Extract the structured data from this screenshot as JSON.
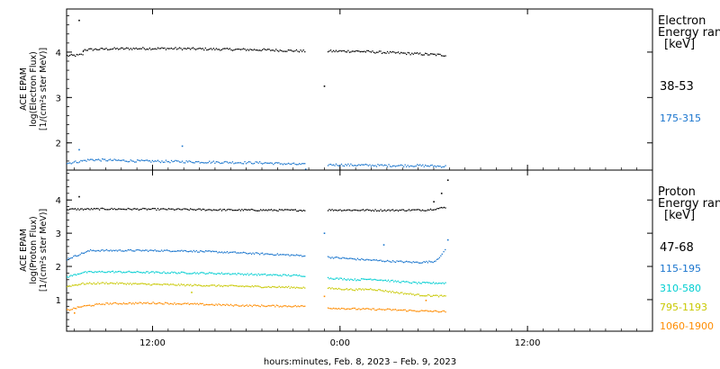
{
  "chart_data": [
    {
      "type": "scatter",
      "panel": "electron",
      "ylabel_lines": [
        "ACE EPAM",
        "log(Electron Flux)",
        "[1/(cm²s ster MeV)]"
      ],
      "legend_title": [
        "Electron",
        "Energy ran",
        "[keV]"
      ],
      "yticks": [
        2,
        3,
        4
      ],
      "ylim": [
        1.4,
        4.95
      ],
      "xlim_hours": [
        -2.5,
        35.0
      ],
      "series": [
        {
          "name": "38-53",
          "color": "#000000",
          "segments": [
            {
              "points": [
                [
                  -2.5,
                  3.92
                ],
                [
                  -1.8,
                  3.93
                ],
                [
                  -1.5,
                  3.95
                ],
                [
                  -1.45,
                  4.05
                ],
                [
                  0,
                  4.07
                ],
                [
                  2,
                  4.08
                ],
                [
                  4,
                  4.08
                ],
                [
                  6,
                  4.07
                ],
                [
                  8,
                  4.06
                ],
                [
                  10,
                  4.05
                ],
                [
                  12,
                  4.03
                ],
                [
                  12.8,
                  4.02
                ]
              ]
            },
            {
              "points": [
                [
                  14.2,
                  4.02
                ],
                [
                  16,
                  4.02
                ],
                [
                  18,
                  3.99
                ],
                [
                  20,
                  3.96
                ],
                [
                  21.8,
                  3.93
                ]
              ]
            }
          ],
          "outliers": [
            [
              -1.7,
              4.7
            ],
            [
              14.0,
              3.25
            ]
          ]
        },
        {
          "name": "175-315",
          "color": "#1874cd",
          "segments": [
            {
              "points": [
                [
                  -2.5,
                  1.55
                ],
                [
                  -1.0,
                  1.63
                ],
                [
                  0,
                  1.62
                ],
                [
                  2,
                  1.6
                ],
                [
                  4,
                  1.59
                ],
                [
                  6,
                  1.58
                ],
                [
                  8,
                  1.57
                ],
                [
                  10,
                  1.56
                ],
                [
                  12.8,
                  1.52
                ]
              ]
            },
            {
              "points": [
                [
                  14.2,
                  1.52
                ],
                [
                  16,
                  1.51
                ],
                [
                  18,
                  1.5
                ],
                [
                  20,
                  1.5
                ],
                [
                  21.8,
                  1.48
                ]
              ]
            }
          ],
          "outliers": [
            [
              4.9,
              1.93
            ],
            [
              -1.7,
              1.85
            ],
            [
              12.8,
              1.42
            ]
          ]
        }
      ]
    },
    {
      "type": "scatter",
      "panel": "proton",
      "ylabel_lines": [
        "ACE EPAM",
        "log(Proton Flux)",
        "[1/(cm²s ster MeV)]"
      ],
      "legend_title": [
        "Proton",
        "Energy ran",
        "[keV]"
      ],
      "yticks": [
        1,
        2,
        3,
        4
      ],
      "ylim": [
        0.05,
        4.9
      ],
      "xlim_hours": [
        -2.5,
        35.0
      ],
      "xticks": [
        {
          "hours": 3.0,
          "label": "12:00"
        },
        {
          "hours": 15.0,
          "label": "0:00"
        },
        {
          "hours": 27.0,
          "label": "12:00"
        }
      ],
      "xlabel": "hours:minutes, Feb.  8, 2023 – Feb.  9, 2023",
      "series": [
        {
          "name": "47-68",
          "color": "#000000",
          "segments": [
            {
              "points": [
                [
                  -2.5,
                  3.72
                ],
                [
                  0,
                  3.73
                ],
                [
                  4,
                  3.72
                ],
                [
                  8,
                  3.7
                ],
                [
                  12.8,
                  3.69
                ]
              ]
            },
            {
              "points": [
                [
                  14.2,
                  3.7
                ],
                [
                  18,
                  3.69
                ],
                [
                  20.5,
                  3.7
                ],
                [
                  21.8,
                  3.78
                ]
              ]
            }
          ],
          "outliers": [
            [
              -1.7,
              4.1
            ],
            [
              21.9,
              4.6
            ],
            [
              21.5,
              4.2
            ],
            [
              21.0,
              3.95
            ]
          ]
        },
        {
          "name": "115-195",
          "color": "#1874cd",
          "segments": [
            {
              "points": [
                [
                  -2.5,
                  2.22
                ],
                [
                  -1.5,
                  2.4
                ],
                [
                  -1.0,
                  2.48
                ],
                [
                  2,
                  2.48
                ],
                [
                  5,
                  2.47
                ],
                [
                  8,
                  2.42
                ],
                [
                  10,
                  2.38
                ],
                [
                  12.8,
                  2.32
                ]
              ]
            },
            {
              "points": [
                [
                  14.2,
                  2.28
                ],
                [
                  16,
                  2.22
                ],
                [
                  18,
                  2.16
                ],
                [
                  20,
                  2.12
                ],
                [
                  21,
                  2.15
                ],
                [
                  21.5,
                  2.35
                ],
                [
                  21.8,
                  2.6
                ]
              ]
            }
          ],
          "outliers": [
            [
              14.0,
              3.0
            ],
            [
              17.8,
              2.65
            ],
            [
              21.9,
              2.8
            ]
          ]
        },
        {
          "name": "310-580",
          "color": "#00ced1",
          "segments": [
            {
              "points": [
                [
                  -2.5,
                  1.68
                ],
                [
                  -1.5,
                  1.82
                ],
                [
                  0,
                  1.84
                ],
                [
                  3,
                  1.82
                ],
                [
                  6,
                  1.8
                ],
                [
                  8,
                  1.78
                ],
                [
                  10,
                  1.75
                ],
                [
                  12.8,
                  1.72
                ]
              ]
            },
            {
              "points": [
                [
                  14.2,
                  1.65
                ],
                [
                  16,
                  1.6
                ],
                [
                  17,
                  1.62
                ],
                [
                  18.5,
                  1.55
                ],
                [
                  20,
                  1.5
                ],
                [
                  21.8,
                  1.5
                ]
              ]
            }
          ],
          "outliers": []
        },
        {
          "name": "795-1193",
          "color": "#c8c800",
          "segments": [
            {
              "points": [
                [
                  -2.5,
                  1.4
                ],
                [
                  -1.5,
                  1.48
                ],
                [
                  0,
                  1.5
                ],
                [
                  3,
                  1.46
                ],
                [
                  6,
                  1.43
                ],
                [
                  9,
                  1.4
                ],
                [
                  12.8,
                  1.36
                ]
              ]
            },
            {
              "points": [
                [
                  14.2,
                  1.34
                ],
                [
                  16,
                  1.3
                ],
                [
                  17,
                  1.32
                ],
                [
                  18.5,
                  1.22
                ],
                [
                  20,
                  1.14
                ],
                [
                  21.8,
                  1.1
                ]
              ]
            }
          ],
          "outliers": [
            [
              5.5,
              1.22
            ]
          ]
        },
        {
          "name": "1060-1900",
          "color": "#ff8c00",
          "segments": [
            {
              "points": [
                [
                  -2.5,
                  0.68
                ],
                [
                  -1.5,
                  0.8
                ],
                [
                  0,
                  0.88
                ],
                [
                  3,
                  0.9
                ],
                [
                  6,
                  0.86
                ],
                [
                  9,
                  0.82
                ],
                [
                  12.8,
                  0.8
                ]
              ]
            },
            {
              "points": [
                [
                  14.2,
                  0.75
                ],
                [
                  16,
                  0.72
                ],
                [
                  18,
                  0.7
                ],
                [
                  20,
                  0.66
                ],
                [
                  21.8,
                  0.64
                ]
              ]
            }
          ],
          "outliers": [
            [
              14.0,
              1.1
            ],
            [
              -2.0,
              0.6
            ],
            [
              20.5,
              0.98
            ]
          ]
        }
      ]
    }
  ]
}
